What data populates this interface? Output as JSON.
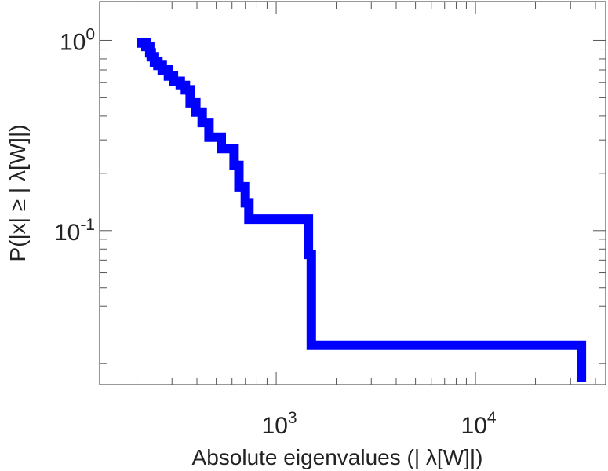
{
  "chart_data": {
    "type": "line",
    "step": true,
    "xscale": "log",
    "yscale": "log",
    "xlabel": "Absolute eigenvalues (|     λ[W]|)",
    "ylabel": "P(|x|  ≥ | λ[W]|)",
    "xlim": [
      130,
      45000
    ],
    "ylim": [
      0.0155,
      1.6
    ],
    "xticks": [
      {
        "base": "10",
        "exp": "3",
        "value": 1000
      },
      {
        "base": "10",
        "exp": "4",
        "value": 10000
      }
    ],
    "yticks": [
      {
        "base": "10",
        "exp": "0",
        "value": 1
      },
      {
        "base": "10",
        "exp": "-1",
        "value": 0.1
      }
    ],
    "series": [
      {
        "color": "#0000ff",
        "x": [
          200,
          218,
          222,
          232,
          236,
          245,
          255,
          268,
          288,
          305,
          330,
          350,
          370,
          395,
          425,
          460,
          530,
          615,
          650,
          700,
          730,
          1420,
          1450,
          1500,
          34000
        ],
        "y": [
          0.97,
          0.97,
          0.93,
          0.86,
          0.82,
          0.77,
          0.74,
          0.7,
          0.65,
          0.61,
          0.58,
          0.55,
          0.47,
          0.42,
          0.37,
          0.31,
          0.27,
          0.22,
          0.17,
          0.14,
          0.115,
          0.115,
          0.075,
          0.025,
          0.016
        ]
      }
    ]
  }
}
